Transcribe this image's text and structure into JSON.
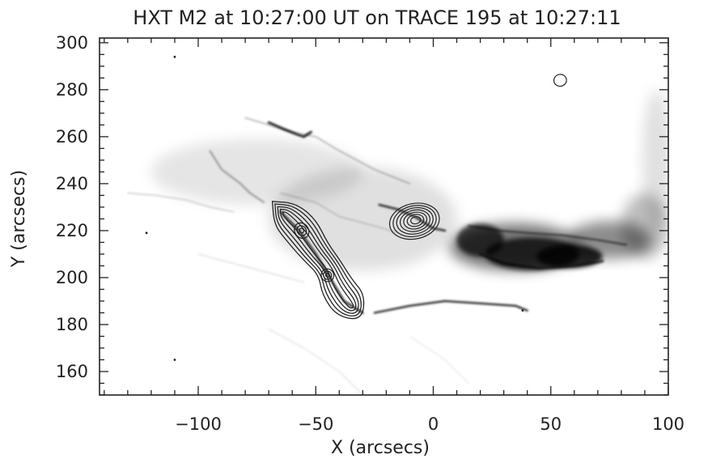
{
  "chart_data": {
    "type": "contour",
    "title": "HXT M2 at 10:27:00 UT on TRACE 195 at 10:27:11",
    "xlabel": "X (arcsecs)",
    "ylabel": "Y (arcsecs)",
    "xlim": [
      -142,
      100
    ],
    "ylim": [
      150,
      302
    ],
    "x_ticks": [
      -100,
      -50,
      0,
      50,
      100
    ],
    "y_ticks": [
      160,
      180,
      200,
      220,
      240,
      260,
      280,
      300
    ],
    "x_minor_step": 10,
    "y_minor_step": 5,
    "grid": false,
    "background_image": "TRACE 195 EUV image, inverted grayscale (dark = bright emission)",
    "contour_color": "#222222",
    "hxt_sources": [
      {
        "name": "southern-elongated",
        "ridge": [
          [
            -63,
            227
          ],
          [
            -56,
            220
          ],
          [
            -50,
            211
          ],
          [
            -44,
            204
          ],
          [
            -41,
            196
          ],
          [
            -35,
            188
          ]
        ],
        "levels": 5,
        "peak": [
          -56,
          220
        ],
        "secondary_peak": [
          -45,
          201
        ]
      },
      {
        "name": "northern-compact",
        "center": [
          -8,
          224
        ],
        "rx": 10,
        "ry": 7,
        "levels": 7
      },
      {
        "name": "small-isolated",
        "center": [
          54,
          284
        ],
        "rx": 2,
        "ry": 2,
        "levels": 1
      }
    ]
  }
}
